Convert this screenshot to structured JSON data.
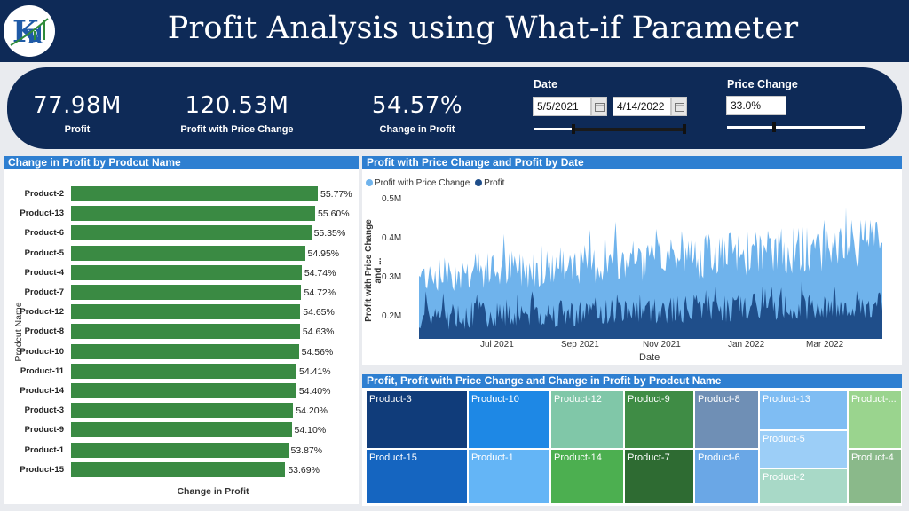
{
  "header": {
    "title": "Profit Analysis using What-if Parameter",
    "logo_icon": "kr-logo-icon"
  },
  "kpis": [
    {
      "value": "77.98M",
      "label": "Profit"
    },
    {
      "value": "120.53M",
      "label": "Profit with Price Change"
    },
    {
      "value": "54.57%",
      "label": "Change in Profit"
    }
  ],
  "date_slicer": {
    "label": "Date",
    "start": "5/5/2021",
    "end": "4/14/2022",
    "calendar_icon": "calendar-icon"
  },
  "price_slicer": {
    "label": "Price Change",
    "value": "33.0%",
    "level_fraction": 0.33
  },
  "bar_panel": {
    "title": "Change in Profit by Prodcut Name",
    "y_axis_title": "Prodcut Name",
    "x_axis_title": "Change in Profit"
  },
  "line_panel": {
    "title": "Profit with Price Change and Profit by Date",
    "y_axis_title": "Profit with Price Change and ...",
    "x_axis_title": "Date",
    "y_ticks": [
      "0.5M",
      "0.4M",
      "0.3M",
      "0.2M"
    ],
    "x_ticks": [
      "Jul 2021",
      "Sep 2021",
      "Nov 2021",
      "Jan 2022",
      "Mar 2022"
    ]
  },
  "treemap_panel": {
    "title": "Profit, Profit with Price Change and Change in Profit by Prodcut Name",
    "tiles": [
      {
        "label": "Product-3",
        "color": "#103c7a",
        "text": "#ffffff"
      },
      {
        "label": "Product-15",
        "color": "#1565c0",
        "text": "#ffffff"
      },
      {
        "label": "Product-10",
        "color": "#1e88e5",
        "text": "#ffffff"
      },
      {
        "label": "Product-1",
        "color": "#64b5f6",
        "text": "#ffffff"
      },
      {
        "label": "Product-12",
        "color": "#80c7a8",
        "text": "#ffffff"
      },
      {
        "label": "Product-14",
        "color": "#4caf50",
        "text": "#ffffff"
      },
      {
        "label": "Product-9",
        "color": "#3f8c45",
        "text": "#ffffff"
      },
      {
        "label": "Product-7",
        "color": "#2e6b32",
        "text": "#ffffff"
      },
      {
        "label": "Product-8",
        "color": "#6f8fb5",
        "text": "#ffffff"
      },
      {
        "label": "Product-6",
        "color": "#6aa7e6",
        "text": "#ffffff"
      },
      {
        "label": "Product-13",
        "color": "#7fbdf3",
        "text": "#ffffff"
      },
      {
        "label": "Product-5",
        "color": "#9ccef7",
        "text": "#ffffff"
      },
      {
        "label": "Product-2",
        "color": "#a8d9c7",
        "text": "#ffffff"
      },
      {
        "label": "Product-...",
        "color": "#9ad48e",
        "text": "#ffffff"
      },
      {
        "label": "Product-4",
        "color": "#8ab98a",
        "text": "#ffffff"
      }
    ]
  },
  "chart_data": [
    {
      "type": "bar",
      "title": "Change in Profit by Prodcut Name",
      "ylabel": "Prodcut Name",
      "xlabel": "Change in Profit",
      "categories": [
        "Product-2",
        "Product-13",
        "Product-6",
        "Product-5",
        "Product-4",
        "Product-7",
        "Product-12",
        "Product-8",
        "Product-10",
        "Product-11",
        "Product-14",
        "Product-3",
        "Product-9",
        "Product-1",
        "Product-15"
      ],
      "values": [
        55.77,
        55.6,
        55.35,
        54.95,
        54.74,
        54.72,
        54.65,
        54.63,
        54.56,
        54.41,
        54.4,
        54.2,
        54.1,
        53.87,
        53.69
      ],
      "labels": [
        "55.77%",
        "55.60%",
        "55.35%",
        "54.95%",
        "54.74%",
        "54.72%",
        "54.65%",
        "54.63%",
        "54.56%",
        "54.41%",
        "54.40%",
        "54.20%",
        "54.10%",
        "53.87%",
        "53.69%"
      ],
      "color": "#3a8a43"
    },
    {
      "type": "area",
      "title": "Profit with Price Change and Profit by Date",
      "xlabel": "Date",
      "ylabel": "Profit with Price Change and ...",
      "x_range": [
        "2021-05-05",
        "2022-04-14"
      ],
      "ylim": [
        0.15,
        0.5
      ],
      "legend": "top-left",
      "series": [
        {
          "name": "Profit with Price Change",
          "color": "#6fb3ec",
          "typical_min": 0.24,
          "typical_max": 0.42,
          "peak": 0.46
        },
        {
          "name": "Profit",
          "color": "#1f4e8a",
          "typical_min": 0.16,
          "typical_max": 0.28,
          "peak": 0.3
        }
      ]
    },
    {
      "type": "treemap",
      "title": "Profit, Profit with Price Change and Change in Profit by Prodcut Name",
      "categories": [
        "Product-3",
        "Product-15",
        "Product-10",
        "Product-1",
        "Product-12",
        "Product-14",
        "Product-9",
        "Product-7",
        "Product-8",
        "Product-6",
        "Product-13",
        "Product-5",
        "Product-2",
        "Product-...",
        "Product-4"
      ]
    }
  ]
}
